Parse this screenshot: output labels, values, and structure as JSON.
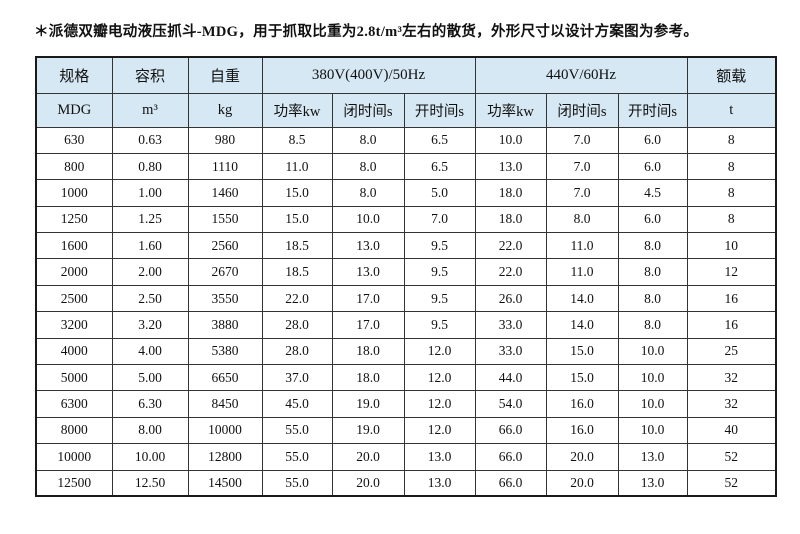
{
  "page": {
    "title": "＊派德双瓣电动液压抓斗-MDG，用于抓取比重为2.8t/m³左右的散货，外形尺寸以设计方案图为参考。"
  },
  "colors": {
    "header_bg": "#d6e8f3",
    "border_inner": "#333333",
    "border_outer": "#1a1a1a",
    "text": "#111111",
    "page_bg": "#ffffff"
  },
  "table": {
    "headers": {
      "spec": "规格",
      "volume": "容积",
      "weight": "自重",
      "group_50hz": "380V(400V)/50Hz",
      "group_60hz": "440V/60Hz",
      "rated_load": "额载"
    },
    "subheaders": {
      "spec_unit": "MDG",
      "volume_unit": "m³",
      "weight_unit": "kg",
      "power_50": "功率kw",
      "close_50": "闭时间s",
      "open_50": "开时间s",
      "power_60": "功率kw",
      "close_60": "闭时间s",
      "open_60": "开时间s",
      "load_unit": "t"
    },
    "rows": [
      [
        "630",
        "0.63",
        "980",
        "8.5",
        "8.0",
        "6.5",
        "10.0",
        "7.0",
        "6.0",
        "8"
      ],
      [
        "800",
        "0.80",
        "1110",
        "11.0",
        "8.0",
        "6.5",
        "13.0",
        "7.0",
        "6.0",
        "8"
      ],
      [
        "1000",
        "1.00",
        "1460",
        "15.0",
        "8.0",
        "5.0",
        "18.0",
        "7.0",
        "4.5",
        "8"
      ],
      [
        "1250",
        "1.25",
        "1550",
        "15.0",
        "10.0",
        "7.0",
        "18.0",
        "8.0",
        "6.0",
        "8"
      ],
      [
        "1600",
        "1.60",
        "2560",
        "18.5",
        "13.0",
        "9.5",
        "22.0",
        "11.0",
        "8.0",
        "10"
      ],
      [
        "2000",
        "2.00",
        "2670",
        "18.5",
        "13.0",
        "9.5",
        "22.0",
        "11.0",
        "8.0",
        "12"
      ],
      [
        "2500",
        "2.50",
        "3550",
        "22.0",
        "17.0",
        "9.5",
        "26.0",
        "14.0",
        "8.0",
        "16"
      ],
      [
        "3200",
        "3.20",
        "3880",
        "28.0",
        "17.0",
        "9.5",
        "33.0",
        "14.0",
        "8.0",
        "16"
      ],
      [
        "4000",
        "4.00",
        "5380",
        "28.0",
        "18.0",
        "12.0",
        "33.0",
        "15.0",
        "10.0",
        "25"
      ],
      [
        "5000",
        "5.00",
        "6650",
        "37.0",
        "18.0",
        "12.0",
        "44.0",
        "15.0",
        "10.0",
        "32"
      ],
      [
        "6300",
        "6.30",
        "8450",
        "45.0",
        "19.0",
        "12.0",
        "54.0",
        "16.0",
        "10.0",
        "32"
      ],
      [
        "8000",
        "8.00",
        "10000",
        "55.0",
        "19.0",
        "12.0",
        "66.0",
        "16.0",
        "10.0",
        "40"
      ],
      [
        "10000",
        "10.00",
        "12800",
        "55.0",
        "20.0",
        "13.0",
        "66.0",
        "20.0",
        "13.0",
        "52"
      ],
      [
        "12500",
        "12.50",
        "14500",
        "55.0",
        "20.0",
        "13.0",
        "66.0",
        "20.0",
        "13.0",
        "52"
      ]
    ]
  }
}
